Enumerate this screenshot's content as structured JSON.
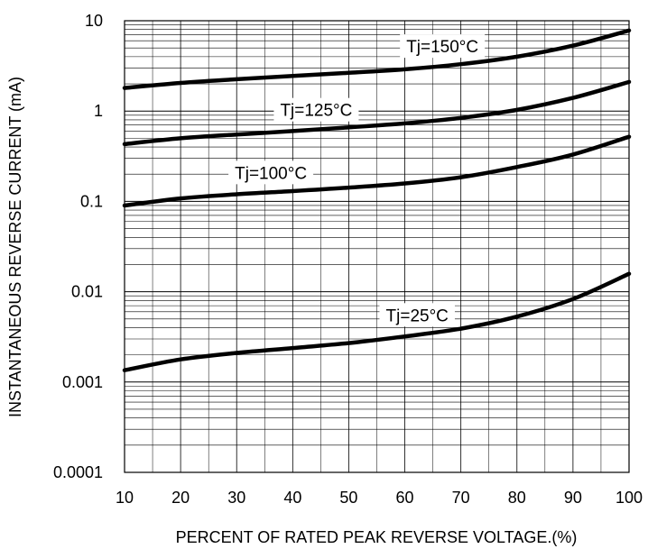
{
  "chart_data": {
    "type": "line",
    "xlabel": "PERCENT OF RATED PEAK REVERSE VOLTAGE.(%)",
    "ylabel": "INSTANTANEOUS REVERSE CURRENT (mA)",
    "xlim": [
      10,
      100
    ],
    "ylim": [
      0.0001,
      10
    ],
    "yscale": "log",
    "grid": true,
    "x_ticks": [
      10,
      20,
      30,
      40,
      50,
      60,
      70,
      80,
      90,
      100
    ],
    "x_tick_labels": [
      "10",
      "20",
      "30",
      "40",
      "50",
      "60",
      "70",
      "80",
      "90",
      "100"
    ],
    "y_ticks": [
      10,
      1,
      0.1,
      0.01,
      0.001,
      0.0001
    ],
    "y_tick_labels": [
      "10",
      "1",
      "0.1",
      "0.01",
      "0.001",
      "0.0001"
    ],
    "x": [
      10,
      20,
      30,
      40,
      50,
      60,
      70,
      80,
      90,
      100
    ],
    "series": [
      {
        "name": "Tj=150°C",
        "values": [
          1.8,
          2.05,
          2.25,
          2.45,
          2.65,
          2.9,
          3.3,
          4.0,
          5.3,
          7.8
        ]
      },
      {
        "name": "Tj=125°C",
        "values": [
          0.43,
          0.5,
          0.55,
          0.6,
          0.66,
          0.73,
          0.84,
          1.03,
          1.4,
          2.1
        ]
      },
      {
        "name": "Tj=100°C",
        "values": [
          0.09,
          0.108,
          0.12,
          0.13,
          0.142,
          0.158,
          0.185,
          0.24,
          0.33,
          0.52
        ]
      },
      {
        "name": "Tj=25°C",
        "values": [
          0.00135,
          0.00178,
          0.0021,
          0.00238,
          0.0027,
          0.0032,
          0.0039,
          0.0053,
          0.0083,
          0.0158
        ]
      }
    ]
  }
}
